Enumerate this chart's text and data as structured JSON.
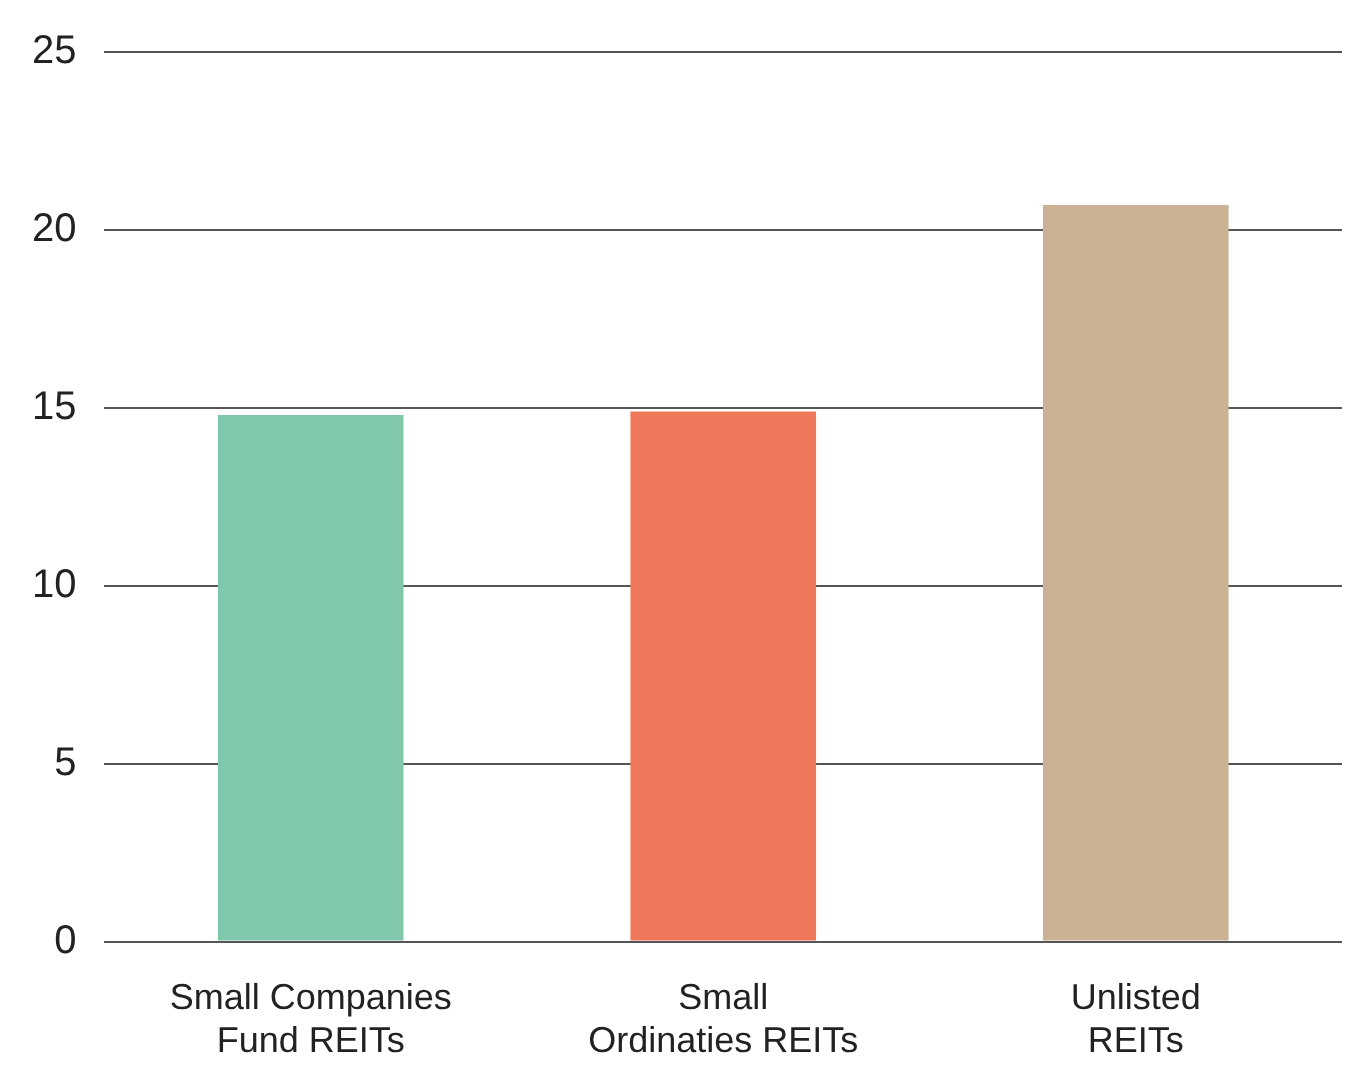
{
  "chart_data": {
    "type": "bar",
    "categories": [
      "Small Companies Fund REITs",
      "Small Ordinaties REITs",
      "Unlisted REITs"
    ],
    "values": [
      14.8,
      14.9,
      20.7
    ],
    "colors": [
      "#80c7ab",
      "#ef785a",
      "#ccb295"
    ],
    "ylim": [
      0,
      25
    ],
    "yticks": [
      0,
      5,
      10,
      15,
      20,
      25
    ],
    "grid": "y",
    "legend": false
  }
}
